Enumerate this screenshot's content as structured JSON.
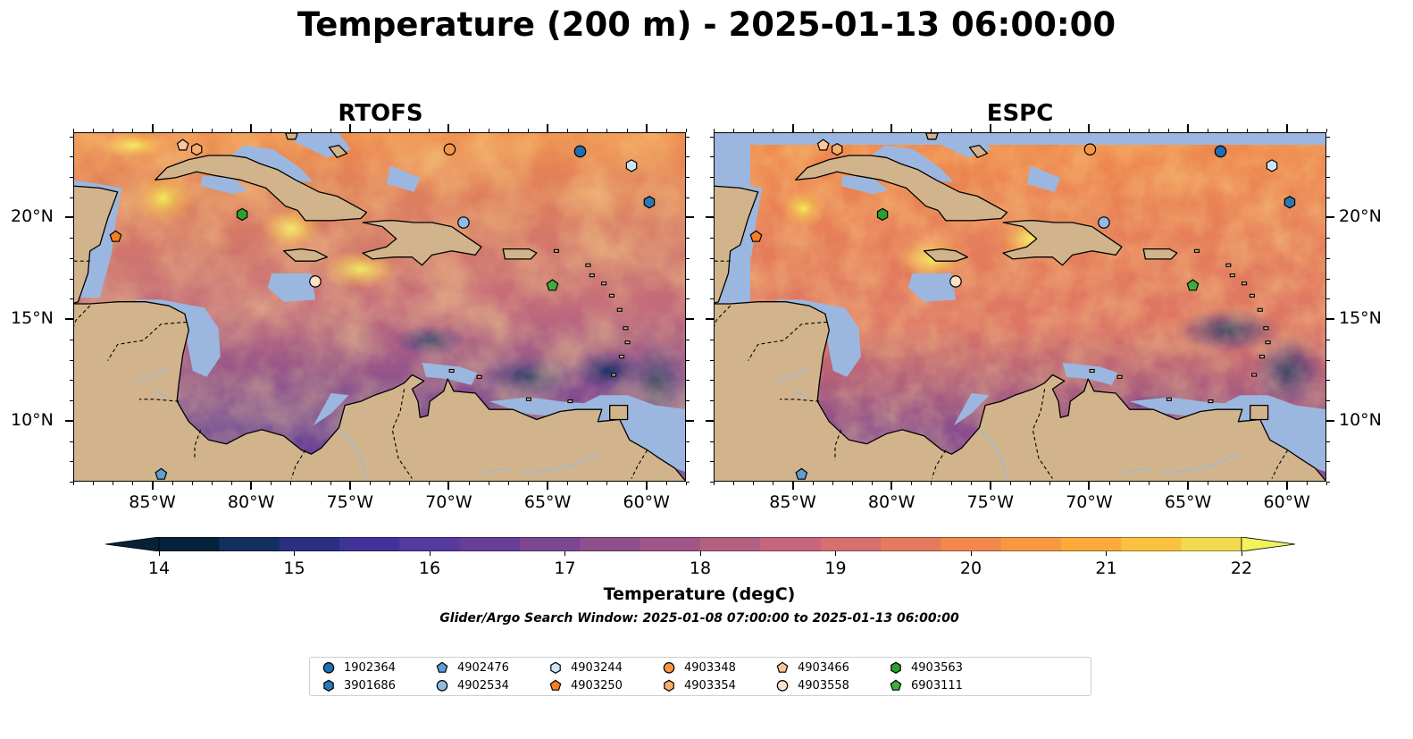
{
  "title": "Temperature (200 m) - 2025-01-13 06:00:00",
  "panels": [
    {
      "title": "RTOFS",
      "key": "rtofs"
    },
    {
      "title": "ESPC",
      "key": "espc"
    }
  ],
  "map": {
    "lon_range": [
      -89.0,
      -58.0
    ],
    "lat_range": [
      7.0,
      24.2
    ],
    "lon_ticks": [
      "85°W",
      "80°W",
      "75°W",
      "70°W",
      "65°W",
      "60°W"
    ],
    "lon_tick_values": [
      -85,
      -80,
      -75,
      -70,
      -65,
      -60
    ],
    "lat_ticks": [
      "20°N",
      "15°N",
      "10°N"
    ],
    "lat_tick_values": [
      20,
      15,
      10
    ],
    "land_color": "#d2b48c",
    "shelf_color": "#9bb7df",
    "coast_color": "#000000"
  },
  "colorbar": {
    "min": 14,
    "max": 22,
    "step": 0.5,
    "labels": [
      "14",
      "15",
      "16",
      "17",
      "18",
      "19",
      "20",
      "21",
      "22"
    ],
    "label_values": [
      14,
      15,
      16,
      17,
      18,
      19,
      20,
      21,
      22
    ],
    "label": "Temperature (degC)",
    "colors": [
      "#06223a",
      "#11305e",
      "#2a3180",
      "#41329a",
      "#563a9e",
      "#683f98",
      "#7b4793",
      "#8e4f8c",
      "#a05787",
      "#b35f80",
      "#c6667a",
      "#d66f6e",
      "#e67a5e",
      "#f2884c",
      "#f79940",
      "#faab3a",
      "#fbc23f",
      "#f2da4f"
    ],
    "under_color": "#06223a",
    "over_color": "#f0f35a"
  },
  "search_window": "Glider/Argo Search Window: 2025-01-08 07:00:00 to 2025-01-13 06:00:00",
  "legend": [
    {
      "id": "1902364",
      "marker": "circle",
      "color": "#1f6fb2"
    },
    {
      "id": "3901686",
      "marker": "hexagon",
      "color": "#2a78b5"
    },
    {
      "id": "4902476",
      "marker": "pentagon",
      "color": "#5c9fd6"
    },
    {
      "id": "4902534",
      "marker": "circle",
      "color": "#8fbce6"
    },
    {
      "id": "4903244",
      "marker": "hexagon",
      "color": "#cce6f7"
    },
    {
      "id": "4903250",
      "marker": "pentagon",
      "color": "#f57f20"
    },
    {
      "id": "4903348",
      "marker": "circle",
      "color": "#f79546"
    },
    {
      "id": "4903354",
      "marker": "hexagon",
      "color": "#f9ad6b"
    },
    {
      "id": "4903466",
      "marker": "pentagon",
      "color": "#fac699"
    },
    {
      "id": "4903558",
      "marker": "circle",
      "color": "#fde1c6"
    },
    {
      "id": "4903563",
      "marker": "hexagon",
      "color": "#2ca02c"
    },
    {
      "id": "6903111",
      "marker": "pentagon",
      "color": "#3cae3c"
    }
  ],
  "floats": [
    {
      "id": "1902364",
      "lon": -63.4,
      "lat": 23.3
    },
    {
      "id": "3901686",
      "lon": -59.9,
      "lat": 20.8
    },
    {
      "id": "4902476",
      "lon": -84.6,
      "lat": 7.4
    },
    {
      "id": "4902534",
      "lon": -69.3,
      "lat": 19.8
    },
    {
      "id": "4903244",
      "lon": -60.8,
      "lat": 22.6
    },
    {
      "id": "4903250",
      "lon": -86.9,
      "lat": 19.1
    },
    {
      "id": "4903348",
      "lon": -70.0,
      "lat": 23.4
    },
    {
      "id": "4903354",
      "lon": -82.8,
      "lat": 23.4
    },
    {
      "id": "4903466",
      "lon": -83.5,
      "lat": 23.6
    },
    {
      "id": "4903558",
      "lon": -76.8,
      "lat": 16.9
    },
    {
      "id": "4903563",
      "lon": -80.5,
      "lat": 20.2
    },
    {
      "id": "6903111",
      "lon": -64.8,
      "lat": 16.7
    }
  ]
}
